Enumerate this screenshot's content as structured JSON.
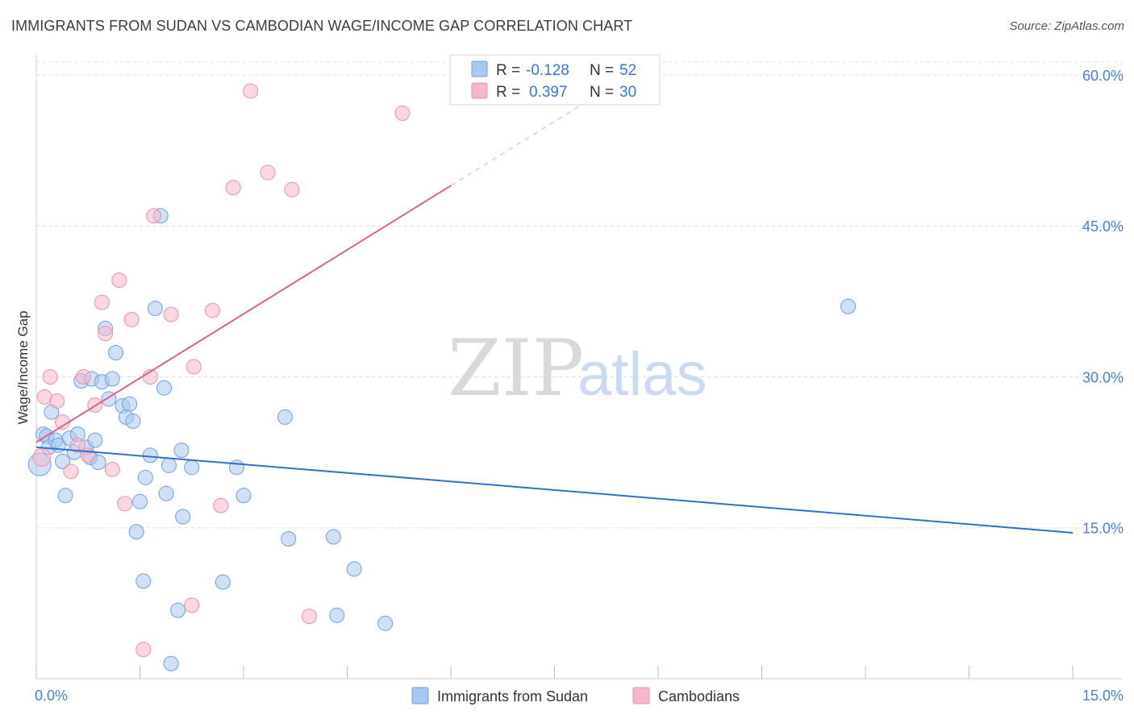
{
  "header": {
    "title": "IMMIGRANTS FROM SUDAN VS CAMBODIAN WAGE/INCOME GAP CORRELATION CHART",
    "source": "Source: ZipAtlas.com"
  },
  "watermark": {
    "zip": "ZIP",
    "atlas": "atlas"
  },
  "legend": {
    "rows": [
      {
        "r_label": "R =",
        "r_value": "-0.128",
        "n_label": "N =",
        "n_value": "52",
        "color": "#a9c8f0"
      },
      {
        "r_label": "R =",
        "r_value": "0.397",
        "n_label": "N =",
        "n_value": "30",
        "color": "#f5b8cb"
      }
    ]
  },
  "bottom_legend": [
    {
      "label": "Immigrants from Sudan",
      "color": "#a9c8f0"
    },
    {
      "label": "Cambodians",
      "color": "#f5b8cb"
    }
  ],
  "chart_data": {
    "type": "scatter",
    "title": "IMMIGRANTS FROM SUDAN VS CAMBODIAN WAGE/INCOME GAP CORRELATION CHART",
    "ylabel": "Wage/Income Gap",
    "xlabel": "",
    "xlim": [
      0,
      15
    ],
    "ylim": [
      0,
      62
    ],
    "x_ticks": [
      0,
      1.5,
      3,
      4.5,
      6,
      7.5,
      9,
      10.5,
      12,
      13.5,
      15
    ],
    "x_tick_labels": [
      "0.0%",
      "15.0%"
    ],
    "y_ticks": [
      15,
      30,
      45,
      60
    ],
    "y_tick_labels": [
      "15.0%",
      "30.0%",
      "45.0%",
      "60.0%"
    ],
    "grid": true,
    "series": [
      {
        "name": "Immigrants from Sudan",
        "color": "#a9c8f0",
        "stroke": "#6f9fe0",
        "trend_color": "#2f6fd1",
        "trend": {
          "x0": 0,
          "y0": 23.0,
          "x1": 15,
          "y1": 14.5
        },
        "points": [
          [
            0.05,
            21.3,
            14
          ],
          [
            0.1,
            24.3,
            9
          ],
          [
            0.15,
            24.1,
            9
          ],
          [
            0.18,
            23.0,
            9
          ],
          [
            0.22,
            26.5,
            9
          ],
          [
            0.28,
            23.7,
            9
          ],
          [
            0.32,
            23.2,
            9
          ],
          [
            0.38,
            21.6,
            9
          ],
          [
            0.42,
            18.2,
            9
          ],
          [
            0.48,
            23.9,
            9
          ],
          [
            0.55,
            22.5,
            9
          ],
          [
            0.6,
            24.3,
            9
          ],
          [
            0.65,
            29.6,
            9
          ],
          [
            0.72,
            23.0,
            9
          ],
          [
            0.78,
            22.0,
            9
          ],
          [
            0.8,
            29.8,
            9
          ],
          [
            0.85,
            23.7,
            9
          ],
          [
            0.9,
            21.5,
            9
          ],
          [
            0.95,
            29.5,
            9
          ],
          [
            1.0,
            34.8,
            9
          ],
          [
            1.05,
            27.8,
            9
          ],
          [
            1.1,
            29.8,
            9
          ],
          [
            1.15,
            32.4,
            9
          ],
          [
            1.25,
            27.1,
            9
          ],
          [
            1.3,
            26.0,
            9
          ],
          [
            1.35,
            27.3,
            9
          ],
          [
            1.4,
            25.6,
            9
          ],
          [
            1.45,
            14.6,
            9
          ],
          [
            1.5,
            17.6,
            9
          ],
          [
            1.55,
            9.7,
            9
          ],
          [
            1.58,
            20.0,
            9
          ],
          [
            1.65,
            22.2,
            9
          ],
          [
            1.72,
            36.8,
            9
          ],
          [
            1.8,
            46.0,
            9
          ],
          [
            1.85,
            28.9,
            9
          ],
          [
            1.88,
            18.4,
            9
          ],
          [
            1.92,
            21.2,
            9
          ],
          [
            1.95,
            1.5,
            9
          ],
          [
            2.05,
            6.8,
            9
          ],
          [
            2.1,
            22.7,
            9
          ],
          [
            2.12,
            16.1,
            9
          ],
          [
            2.25,
            21.0,
            9
          ],
          [
            2.7,
            9.6,
            9
          ],
          [
            2.9,
            21.0,
            9
          ],
          [
            3.0,
            18.2,
            9
          ],
          [
            3.6,
            26.0,
            9
          ],
          [
            3.65,
            13.9,
            9
          ],
          [
            4.3,
            14.1,
            9
          ],
          [
            4.35,
            6.3,
            9
          ],
          [
            4.6,
            10.9,
            9
          ],
          [
            5.05,
            5.5,
            9
          ],
          [
            11.75,
            37.0,
            9
          ]
        ]
      },
      {
        "name": "Cambodians",
        "color": "#f5b8cb",
        "stroke": "#ec8fad",
        "trend_color": "#e0608a",
        "trend": {
          "x0": 0,
          "y0": 23.5,
          "x1": 6.0,
          "y1": 49.0
        },
        "trend_dashed": {
          "x0": 6.0,
          "y0": 49.0,
          "x1": 8.0,
          "y1": 57.5
        },
        "points": [
          [
            0.08,
            22.0,
            11
          ],
          [
            0.12,
            28.0,
            9
          ],
          [
            0.2,
            30.0,
            9
          ],
          [
            0.3,
            27.6,
            9
          ],
          [
            0.38,
            25.5,
            9
          ],
          [
            0.5,
            20.6,
            9
          ],
          [
            0.6,
            23.2,
            9
          ],
          [
            0.68,
            30.0,
            9
          ],
          [
            0.75,
            22.2,
            9
          ],
          [
            0.85,
            27.2,
            9
          ],
          [
            0.95,
            37.4,
            9
          ],
          [
            1.0,
            34.3,
            9
          ],
          [
            1.1,
            20.8,
            9
          ],
          [
            1.2,
            39.6,
            9
          ],
          [
            1.28,
            17.4,
            9
          ],
          [
            1.38,
            35.7,
            9
          ],
          [
            1.55,
            2.9,
            9
          ],
          [
            1.65,
            30.0,
            9
          ],
          [
            1.7,
            46.0,
            9
          ],
          [
            1.95,
            36.2,
            9
          ],
          [
            2.25,
            7.3,
            9
          ],
          [
            2.28,
            31.0,
            9
          ],
          [
            2.55,
            36.6,
            9
          ],
          [
            2.67,
            17.2,
            9
          ],
          [
            2.85,
            48.8,
            9
          ],
          [
            3.1,
            58.4,
            9
          ],
          [
            3.35,
            50.3,
            9
          ],
          [
            3.7,
            48.6,
            9
          ],
          [
            3.95,
            6.2,
            9
          ],
          [
            5.3,
            56.2,
            9
          ]
        ]
      }
    ]
  }
}
